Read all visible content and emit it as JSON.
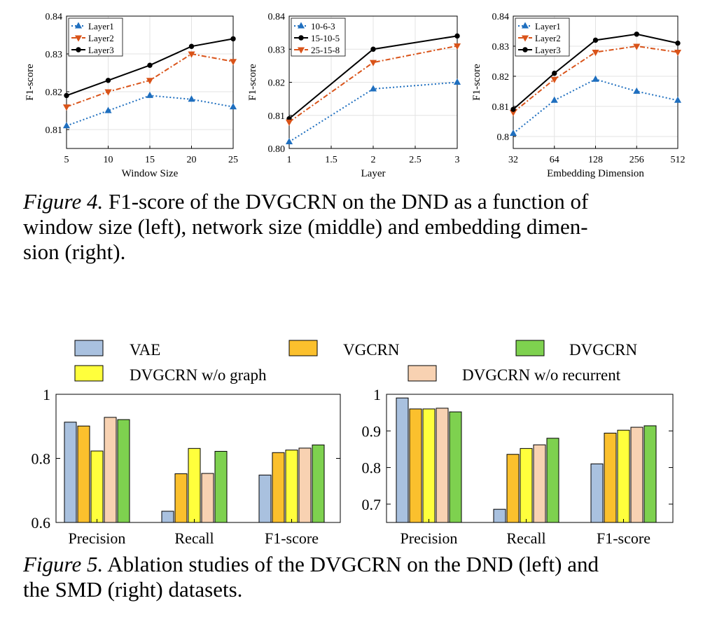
{
  "figure4": {
    "caption_label": "Figure 4.",
    "caption_text": " F1-score of the DVGCRN on the DND as a function of window size (left), network size (middle) and embedding dimension (right).",
    "caption_lines": [
      "F1-score of the DVGCRN on the DND as a function of",
      "window size (left), network size (middle) and embedding dimen-",
      "sion (right)."
    ]
  },
  "figure5": {
    "caption_label": "Figure 5.",
    "caption_lines": [
      "Ablation studies of the DVGCRN on the DND (left) and",
      "the SMD (right) datasets."
    ],
    "legend": [
      {
        "name": "VAE",
        "color": "#a9c1df"
      },
      {
        "name": "VGCRN",
        "color": "#fbc02d"
      },
      {
        "name": "DVGCRN",
        "color": "#7ed14f"
      },
      {
        "name": "DVGCRN w/o graph",
        "color": "#ffff3c"
      },
      {
        "name": "DVGCRN w/o recurrent",
        "color": "#f8d2b2"
      }
    ]
  },
  "chart_data": [
    {
      "type": "line",
      "title": "",
      "xlabel": "Window Size",
      "ylabel": "F1-score",
      "x": [
        5,
        10,
        15,
        20,
        25
      ],
      "xticks": [
        "5",
        "10",
        "15",
        "20",
        "25"
      ],
      "xlim": [
        5,
        25
      ],
      "ylim": [
        0.805,
        0.84
      ],
      "yticks": [
        "0.81",
        "0.82",
        "0.83",
        "0.84"
      ],
      "legend_position": "top-left",
      "series": [
        {
          "name": "Layer1",
          "style": "dotted",
          "marker": "triangle-up",
          "color": "#1f6fbf",
          "values": [
            0.811,
            0.815,
            0.819,
            0.818,
            0.816
          ]
        },
        {
          "name": "Layer2",
          "style": "dashdot",
          "marker": "triangle-down",
          "color": "#d95319",
          "values": [
            0.816,
            0.82,
            0.823,
            0.83,
            0.828
          ]
        },
        {
          "name": "Layer3",
          "style": "solid",
          "marker": "circle",
          "color": "#000000",
          "values": [
            0.819,
            0.823,
            0.827,
            0.832,
            0.834
          ]
        }
      ]
    },
    {
      "type": "line",
      "title": "",
      "xlabel": "Layer",
      "ylabel": "F1-score",
      "x": [
        1,
        2,
        3
      ],
      "xticks": [
        "1",
        "1.5",
        "2",
        "2.5",
        "3"
      ],
      "xlim": [
        1,
        3
      ],
      "ylim": [
        0.8,
        0.84
      ],
      "yticks": [
        "0.80",
        "0.81",
        "0.82",
        "0.83",
        "0.84"
      ],
      "legend_position": "top-left",
      "series": [
        {
          "name": "10-6-3",
          "style": "dotted",
          "marker": "triangle-up",
          "color": "#1f6fbf",
          "values": [
            0.802,
            0.818,
            0.82
          ]
        },
        {
          "name": "15-10-5",
          "style": "solid",
          "marker": "circle",
          "color": "#000000",
          "values": [
            0.809,
            0.83,
            0.834
          ]
        },
        {
          "name": "25-15-8",
          "style": "dashdot",
          "marker": "triangle-down",
          "color": "#d95319",
          "values": [
            0.808,
            0.826,
            0.831
          ]
        }
      ]
    },
    {
      "type": "line",
      "title": "",
      "xlabel": "Embedding Dimension",
      "ylabel": "F1-score",
      "x": [
        32,
        64,
        128,
        256,
        512
      ],
      "xticks": [
        "32",
        "64",
        "128",
        "256",
        "512"
      ],
      "xlim": [
        0,
        4
      ],
      "ylim": [
        0.796,
        0.84
      ],
      "yticks": [
        "0.8",
        "0.81",
        "0.82",
        "0.83",
        "0.84"
      ],
      "legend_position": "top-left",
      "series": [
        {
          "name": "Layer1",
          "style": "dotted",
          "marker": "triangle-up",
          "color": "#1f6fbf",
          "values": [
            0.801,
            0.812,
            0.819,
            0.815,
            0.812
          ]
        },
        {
          "name": "Layer2",
          "style": "dashdot",
          "marker": "triangle-down",
          "color": "#d95319",
          "values": [
            0.808,
            0.819,
            0.828,
            0.83,
            0.828
          ]
        },
        {
          "name": "Layer3",
          "style": "solid",
          "marker": "circle",
          "color": "#000000",
          "values": [
            0.809,
            0.821,
            0.832,
            0.834,
            0.831
          ]
        }
      ]
    },
    {
      "type": "bar",
      "title": "",
      "categories": [
        "Precision",
        "Recall",
        "F1-score"
      ],
      "ylim": [
        0.6,
        1
      ],
      "yticks": [
        "0.6",
        "0.8",
        "1"
      ],
      "series": [
        {
          "name": "VAE",
          "values": [
            0.913,
            0.635,
            0.748
          ]
        },
        {
          "name": "VGCRN",
          "values": [
            0.901,
            0.752,
            0.818
          ]
        },
        {
          "name": "DVGCRN w/o graph",
          "values": [
            0.823,
            0.831,
            0.826
          ]
        },
        {
          "name": "DVGCRN w/o recurrent",
          "values": [
            0.928,
            0.753,
            0.832
          ]
        },
        {
          "name": "DVGCRN",
          "values": [
            0.921,
            0.822,
            0.842
          ]
        }
      ]
    },
    {
      "type": "bar",
      "title": "",
      "categories": [
        "Precision",
        "Recall",
        "F1-score"
      ],
      "ylim": [
        0.65,
        1
      ],
      "yticks": [
        "0.7",
        "0.8",
        "0.9",
        "1"
      ],
      "series": [
        {
          "name": "VAE",
          "values": [
            0.99,
            0.686,
            0.81
          ]
        },
        {
          "name": "VGCRN",
          "values": [
            0.96,
            0.836,
            0.894
          ]
        },
        {
          "name": "DVGCRN w/o graph",
          "values": [
            0.96,
            0.852,
            0.902
          ]
        },
        {
          "name": "DVGCRN w/o recurrent",
          "values": [
            0.962,
            0.862,
            0.91
          ]
        },
        {
          "name": "DVGCRN",
          "values": [
            0.952,
            0.88,
            0.914
          ]
        }
      ]
    }
  ]
}
